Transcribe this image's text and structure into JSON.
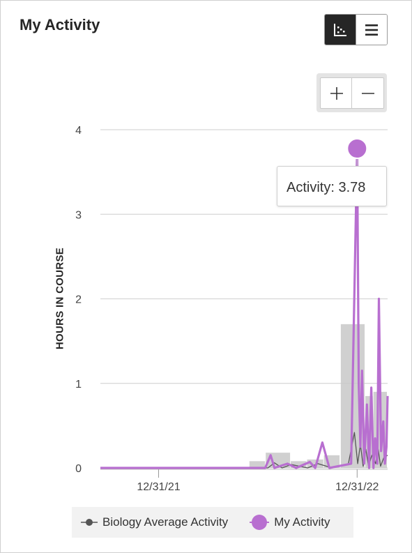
{
  "header": {
    "title": "My Activity"
  },
  "view_toggle": {
    "options": [
      "chart",
      "list"
    ],
    "selected": "chart",
    "chart_icon": "chart-view-icon",
    "list_icon": "list-view-icon"
  },
  "zoom": {
    "in_icon": "plus-icon",
    "out_icon": "minus-icon"
  },
  "tooltip": {
    "text": "Activity: 3.78"
  },
  "colors": {
    "my_activity": "#b86fd0",
    "biology_average": "#555555",
    "bars": "#c8c8c8",
    "grid": "#d6d6d6"
  },
  "chart_data": {
    "type": "line",
    "title": "",
    "xlabel": "",
    "ylabel": "HOURS IN COURSE",
    "ylim": [
      0,
      4
    ],
    "yticks": [
      "0",
      "1",
      "2",
      "3",
      "4"
    ],
    "xticks": [
      "12/31/21",
      "12/31/22"
    ],
    "xlim": [
      "2021-09-15",
      "2023-02-25"
    ],
    "grid": true,
    "legend_position": "bottom",
    "highlighted_point": {
      "date": "2022-12-31",
      "value": 3.78
    },
    "bars": [
      {
        "start": "2022-06-16",
        "end": "2022-07-16",
        "value": 0.08
      },
      {
        "start": "2022-07-16",
        "end": "2022-08-31",
        "value": 0.18
      },
      {
        "start": "2022-08-31",
        "end": "2022-09-30",
        "value": 0.08
      },
      {
        "start": "2022-09-30",
        "end": "2022-10-31",
        "value": 0.1
      },
      {
        "start": "2022-10-31",
        "end": "2022-11-30",
        "value": 0.15
      },
      {
        "start": "2022-12-01",
        "end": "2023-01-15",
        "value": 1.7
      },
      {
        "start": "2023-01-15",
        "end": "2023-01-30",
        "value": 0.85
      },
      {
        "start": "2023-01-30",
        "end": "2023-02-25",
        "value": 0.9
      }
    ],
    "series": [
      {
        "name": "Biology Average Activity",
        "points": [
          [
            "2021-09-15",
            0
          ],
          [
            "2022-07-20",
            0
          ],
          [
            "2022-08-01",
            0.06
          ],
          [
            "2022-08-15",
            0
          ],
          [
            "2022-09-01",
            0.04
          ],
          [
            "2022-10-01",
            0
          ],
          [
            "2022-10-20",
            0.05
          ],
          [
            "2022-11-15",
            0
          ],
          [
            "2022-12-15",
            0.05
          ],
          [
            "2022-12-26",
            0.42
          ],
          [
            "2023-01-01",
            0.05
          ],
          [
            "2023-01-06",
            0.28
          ],
          [
            "2023-01-11",
            0.02
          ],
          [
            "2023-01-16",
            0.22
          ],
          [
            "2023-01-21",
            0.02
          ],
          [
            "2023-01-27",
            0.15
          ],
          [
            "2023-02-03",
            0.05
          ],
          [
            "2023-02-07",
            0.25
          ],
          [
            "2023-02-12",
            0.02
          ],
          [
            "2023-02-18",
            0.12
          ],
          [
            "2023-02-25",
            0.15
          ]
        ]
      },
      {
        "name": "My Activity",
        "points": [
          [
            "2021-09-15",
            0
          ],
          [
            "2022-07-15",
            0
          ],
          [
            "2022-07-25",
            0.15
          ],
          [
            "2022-08-01",
            0
          ],
          [
            "2022-08-25",
            0.05
          ],
          [
            "2022-09-10",
            0
          ],
          [
            "2022-10-05",
            0.07
          ],
          [
            "2022-10-15",
            0
          ],
          [
            "2022-10-28",
            0.3
          ],
          [
            "2022-11-10",
            0
          ],
          [
            "2022-12-20",
            0.05
          ],
          [
            "2022-12-31",
            3.78
          ],
          [
            "2023-01-03",
            1.0
          ],
          [
            "2023-01-06",
            0.25
          ],
          [
            "2023-01-09",
            1.15
          ],
          [
            "2023-01-13",
            0.05
          ],
          [
            "2023-01-18",
            0.75
          ],
          [
            "2023-01-22",
            0.0
          ],
          [
            "2023-01-26",
            0.95
          ],
          [
            "2023-01-30",
            0.0
          ],
          [
            "2023-02-02",
            0.35
          ],
          [
            "2023-02-06",
            0.05
          ],
          [
            "2023-02-09",
            2.0
          ],
          [
            "2023-02-13",
            0.2
          ],
          [
            "2023-02-17",
            0.55
          ],
          [
            "2023-02-20",
            0.05
          ],
          [
            "2023-02-23",
            0.25
          ],
          [
            "2023-02-25",
            0.85
          ]
        ]
      }
    ]
  }
}
